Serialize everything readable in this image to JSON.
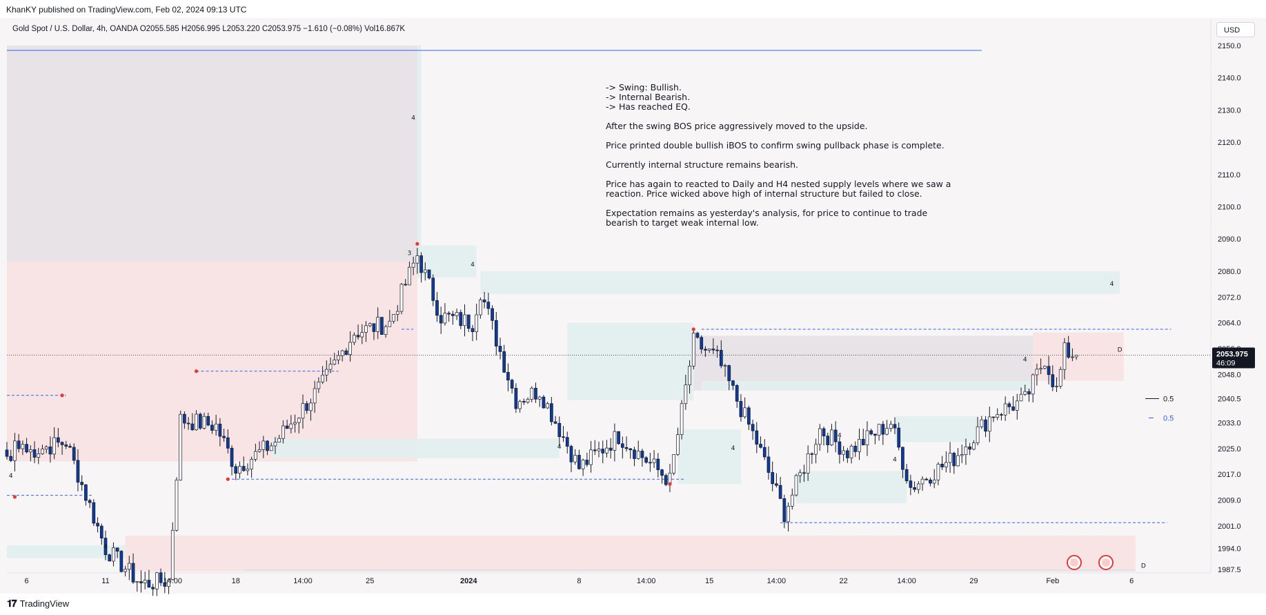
{
  "header": {
    "published": "KhanKY published on TradingView.com, Feb 02, 2024 09:13 UTC"
  },
  "symbol": {
    "line": "Gold Spot / U.S. Dollar, 4h, OANDA  O2055.585  H2056.995  L2053.220  C2053.975  −1.610 (−0.08%)  Vol16.867K"
  },
  "currency": "USD",
  "price_axis": {
    "current_price": "2053.975",
    "countdown": "46:09"
  },
  "note": [
    "-> Swing: Bullish.",
    "-> Internal Bearish.",
    "-> Has reached EQ.",
    "",
    "After the swing BOS price aggressively moved to the upside.",
    "",
    "Price printed double bullish iBOS to confirm swing pullback phase is complete.",
    "",
    "Currently internal structure remains bearish.",
    "",
    "Price has again to reacted to Daily and H4 nested supply levels where we saw a",
    "reaction.  Price wicked above high of internal structure but failed to close.",
    "",
    "Expectation remains as yesterday's analysis, for price to continue to trade",
    "bearish to target weak internal low."
  ],
  "fib_labels": [
    {
      "text": "0.5",
      "price": 2040.5,
      "color": "#131722"
    },
    {
      "text": "0.5",
      "price": 2034.5,
      "color": "#2962ff"
    }
  ],
  "brand": "TradingView",
  "colors": {
    "bull": "#ffffff",
    "bear": "#0d3b9c",
    "wick": "#131722",
    "dash": "#2962ff",
    "demand": "#e3eeee",
    "supply": "#f9e3e4",
    "grey_zone": "#e6e1e6",
    "pivot": "#e53935"
  },
  "chart_data": {
    "type": "candlestick",
    "symbol": "Gold Spot / U.S. Dollar",
    "interval": "4h",
    "exchange": "OANDA",
    "ohlc_last": {
      "open": 2055.585,
      "high": 2056.995,
      "low": 2053.22,
      "close": 2053.975
    },
    "change": "−1.610 (−0.08%)",
    "volume": "16.867K",
    "ylim": [
      1982,
      2152
    ],
    "y_ticks": [
      2150.0,
      2140.0,
      2130.0,
      2120.0,
      2110.0,
      2100.0,
      2090.0,
      2080.0,
      2072.0,
      2064.0,
      2056.0,
      2048.0,
      2040.5,
      2033.0,
      2025.0,
      2017.0,
      2009.0,
      2001.0,
      1994.0,
      1987.5
    ],
    "x_ticks": [
      {
        "label": "6",
        "index": 5
      },
      {
        "label": "11",
        "index": 25
      },
      {
        "label": "14:00",
        "index": 42
      },
      {
        "label": "18",
        "index": 58
      },
      {
        "label": "14:00",
        "index": 75
      },
      {
        "label": "25",
        "index": 92
      },
      {
        "label": "2024",
        "index": 117,
        "bold": true
      },
      {
        "label": "8",
        "index": 145
      },
      {
        "label": "14:00",
        "index": 162
      },
      {
        "label": "15",
        "index": 178
      },
      {
        "label": "14:00",
        "index": 195
      },
      {
        "label": "22",
        "index": 212
      },
      {
        "label": "14:00",
        "index": 228
      },
      {
        "label": "29",
        "index": 245
      },
      {
        "label": "Feb",
        "index": 265
      },
      {
        "label": "6",
        "index": 285
      }
    ],
    "last_index": 271,
    "horizontal_line": 2148.5,
    "dashed_levels": [
      {
        "price": 2010.5,
        "from": 0,
        "to": 22
      },
      {
        "price": 2041.5,
        "from": 0,
        "to": 15
      },
      {
        "price": 2049.0,
        "from": 48,
        "to": 84
      },
      {
        "price": 2015.5,
        "from": 57,
        "to": 172
      },
      {
        "price": 2062.0,
        "from": 176,
        "to": 295
      },
      {
        "price": 2002.0,
        "from": 196,
        "to": 294
      },
      {
        "price": 2062.0,
        "from": 100,
        "to": 103
      }
    ],
    "zones": [
      {
        "kind": "grey_zone",
        "from": 0,
        "to": 104,
        "top": 2150.0,
        "bottom": 2083.0
      },
      {
        "kind": "supply",
        "from": 0,
        "to": 104,
        "top": 2083.0,
        "bottom": 2021.0
      },
      {
        "kind": "demand",
        "from": 104,
        "to": 105,
        "top": 2150.0,
        "bottom": 2083.0
      },
      {
        "kind": "demand",
        "from": 104,
        "to": 119,
        "top": 2088.0,
        "bottom": 2078.0
      },
      {
        "kind": "demand",
        "from": 120,
        "to": 282,
        "top": 2080.0,
        "bottom": 2073.0
      },
      {
        "kind": "demand",
        "from": 142,
        "to": 174,
        "top": 2064.0,
        "bottom": 2040.0
      },
      {
        "kind": "grey_zone",
        "from": 174,
        "to": 260,
        "top": 2060.0,
        "bottom": 2043.0
      },
      {
        "kind": "supply",
        "from": 260,
        "to": 283,
        "top": 2061.0,
        "bottom": 2046.0
      },
      {
        "kind": "demand",
        "from": 176,
        "to": 260,
        "top": 2046.0,
        "bottom": 2043.0
      },
      {
        "kind": "demand",
        "from": 67,
        "to": 140,
        "top": 2028.0,
        "bottom": 2022.0
      },
      {
        "kind": "demand",
        "from": 170,
        "to": 186,
        "top": 2031.0,
        "bottom": 2014.0
      },
      {
        "kind": "demand",
        "from": 200,
        "to": 228,
        "top": 2018.0,
        "bottom": 2008.0
      },
      {
        "kind": "demand",
        "from": 225,
        "to": 246,
        "top": 2035.0,
        "bottom": 2027.0
      },
      {
        "kind": "demand",
        "from": 0,
        "to": 30,
        "top": 1995.0,
        "bottom": 1991.0
      },
      {
        "kind": "supply",
        "from": 30,
        "to": 286,
        "top": 1998.0,
        "bottom": 1986.0
      },
      {
        "kind": "grey_zone",
        "from": 60,
        "to": 286,
        "top": 1987.5,
        "bottom": 1982.0
      }
    ],
    "pivots": [
      {
        "index": 2,
        "price": 2010.0
      },
      {
        "index": 14,
        "price": 2041.5
      },
      {
        "index": 48,
        "price": 2049.0
      },
      {
        "index": 56,
        "price": 2015.5
      },
      {
        "index": 104,
        "price": 2088.5
      },
      {
        "index": 168,
        "price": 2014.0
      },
      {
        "index": 174,
        "price": 2062.0
      }
    ],
    "structure_labels": [
      {
        "text": "4",
        "index": 103,
        "price": 2127.0
      },
      {
        "text": "4",
        "index": 118,
        "price": 2081.5
      },
      {
        "text": "3",
        "index": 102,
        "price": 2085.0
      },
      {
        "text": "4",
        "index": 1,
        "price": 2016.0
      },
      {
        "text": "4",
        "index": 25,
        "price": 1994.0
      },
      {
        "text": "4",
        "index": 140,
        "price": 2025.0
      },
      {
        "text": "4",
        "index": 184,
        "price": 2024.5
      },
      {
        "text": "4",
        "index": 211,
        "price": 2028.5
      },
      {
        "text": "4",
        "index": 225,
        "price": 2021.0
      },
      {
        "text": "4",
        "index": 258,
        "price": 2052.0
      },
      {
        "text": "4",
        "index": 280,
        "price": 2075.5
      },
      {
        "text": "D",
        "index": 282,
        "price": 2055.0
      },
      {
        "text": "D",
        "index": 288,
        "price": 1988.0
      }
    ],
    "anchors": [
      {
        "date": "Dec 6",
        "index": 5,
        "close": 2024.0
      },
      {
        "date": "Dec 8",
        "index": 15,
        "close": 2027.0
      },
      {
        "date": "Dec 11",
        "index": 25,
        "close": 1994.0
      },
      {
        "date": "Dec 13",
        "index": 34,
        "close": 1983.0
      },
      {
        "date": "Dec 13 14:00",
        "index": 41,
        "close": 1984.0
      },
      {
        "date": "Dec 14",
        "index": 44,
        "close": 2034.0
      },
      {
        "date": "Dec 15",
        "index": 53,
        "close": 2032.0
      },
      {
        "date": "Dec 18",
        "index": 58,
        "close": 2019.0
      },
      {
        "date": "Dec 19",
        "index": 68,
        "close": 2027.0
      },
      {
        "date": "Dec 21",
        "index": 80,
        "close": 2045.0
      },
      {
        "date": "Dec 22",
        "index": 88,
        "close": 2061.0
      },
      {
        "date": "Dec 26",
        "index": 97,
        "close": 2064.0
      },
      {
        "date": "Dec 28",
        "index": 104,
        "close": 2085.0
      },
      {
        "date": "Dec 29",
        "index": 110,
        "close": 2066.0
      },
      {
        "date": "Dec 31",
        "index": 118,
        "close": 2064.0
      },
      {
        "date": "Jan 2",
        "index": 120,
        "close": 2074.0
      },
      {
        "date": "Jan 4",
        "index": 129,
        "close": 2040.0
      },
      {
        "date": "Jan 5",
        "index": 135,
        "close": 2043.0
      },
      {
        "date": "Jan 8",
        "index": 145,
        "close": 2019.0
      },
      {
        "date": "Jan 10",
        "index": 155,
        "close": 2029.0
      },
      {
        "date": "Jan 12",
        "index": 168,
        "close": 2015.0
      },
      {
        "date": "Jan 12 14:00",
        "index": 174,
        "close": 2058.0
      },
      {
        "date": "Jan 15",
        "index": 180,
        "close": 2053.0
      },
      {
        "date": "Jan 17",
        "index": 190,
        "close": 2027.0
      },
      {
        "date": "Jan 18",
        "index": 197,
        "close": 2005.0
      },
      {
        "date": "Jan 19",
        "index": 206,
        "close": 2031.0
      },
      {
        "date": "Jan 22",
        "index": 213,
        "close": 2024.0
      },
      {
        "date": "Jan 24",
        "index": 224,
        "close": 2033.0
      },
      {
        "date": "Jan 25",
        "index": 229,
        "close": 2013.0
      },
      {
        "date": "Jan 26",
        "index": 240,
        "close": 2022.0
      },
      {
        "date": "Jan 29",
        "index": 250,
        "close": 2036.0
      },
      {
        "date": "Jan 30",
        "index": 258,
        "close": 2040.0
      },
      {
        "date": "Jan 31",
        "index": 263,
        "close": 2053.0
      },
      {
        "date": "Feb 1",
        "index": 266,
        "close": 2043.0
      },
      {
        "date": "Feb 1 20:00",
        "index": 268,
        "close": 2055.0
      },
      {
        "date": "Feb 2",
        "index": 271,
        "close": 2053.975
      }
    ]
  }
}
